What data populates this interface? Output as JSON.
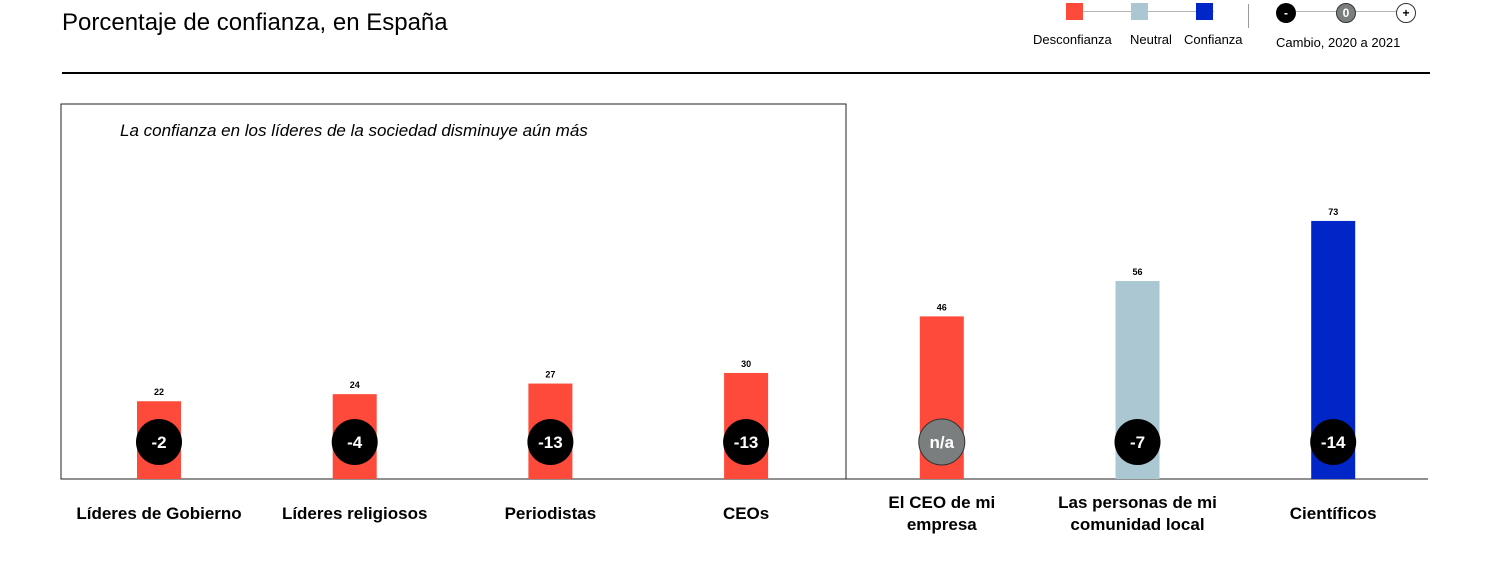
{
  "title": "Porcentaje de confianza, en España",
  "legend": {
    "distrust": {
      "label": "Desconfianza",
      "color": "#fe4a3a"
    },
    "neutral": {
      "label": "Neutral",
      "color": "#abc7d1"
    },
    "trust": {
      "label": "Confianza",
      "color": "#0026c8"
    },
    "change": {
      "minus": "-",
      "zero": "0",
      "plus": "+",
      "label": "Cambio, 2020 a 2021"
    }
  },
  "chart_data": {
    "type": "bar",
    "subtitle": "La confianza en los líderes de la sociedad disminuye aún más",
    "categories": [
      "Líderes de Gobierno",
      "Líderes religiosos",
      "Periodistas",
      "CEOs",
      "El CEO de mi empresa",
      "Las personas de mi comunidad local",
      "Científicos"
    ],
    "values": [
      22,
      24,
      27,
      30,
      46,
      56,
      73
    ],
    "value_labels": [
      "22",
      "24",
      "27",
      "30",
      "46",
      "56",
      "73"
    ],
    "change": [
      "-2",
      "-4",
      "-13",
      "-13",
      "n/a",
      "-7",
      "-14"
    ],
    "trust_level": [
      "distrust",
      "distrust",
      "distrust",
      "distrust",
      "distrust",
      "neutral",
      "trust"
    ],
    "ylim": [
      0,
      100
    ],
    "grid": false
  }
}
